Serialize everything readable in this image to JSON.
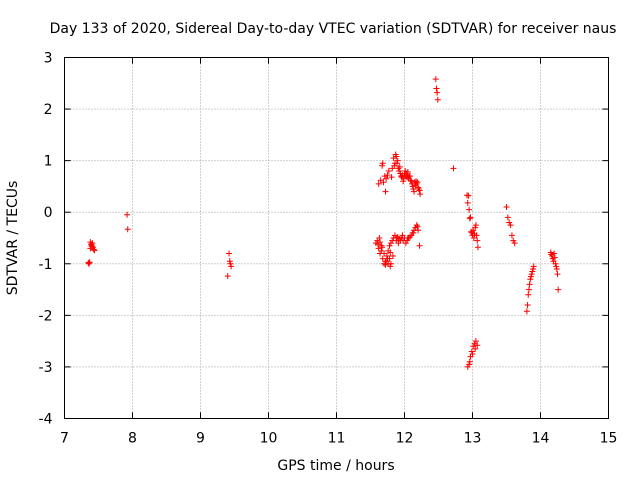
{
  "chart_data": {
    "type": "scatter",
    "title": "Day 133 of 2020, Sidereal Day-to-day VTEC variation (SDTVAR) for receiver naus",
    "xlabel": "GPS time / hours",
    "ylabel": "SDTVAR / TECUs",
    "xlim": [
      7,
      15
    ],
    "ylim": [
      -4,
      3
    ],
    "xticks": [
      7,
      8,
      9,
      10,
      11,
      12,
      13,
      14,
      15
    ],
    "yticks": [
      -4,
      -3,
      -2,
      -1,
      0,
      1,
      2,
      3
    ],
    "grid": true,
    "marker": "+",
    "color": "#ff0000",
    "series": [
      {
        "name": "SDTVAR",
        "x": [
          7.35,
          7.36,
          7.37,
          7.38,
          7.39,
          7.4,
          7.41,
          7.42,
          7.43,
          7.44,
          7.38,
          7.4,
          7.92,
          7.93,
          9.4,
          9.42,
          9.43,
          9.44,
          9.45,
          11.58,
          11.6,
          11.61,
          11.62,
          11.63,
          11.64,
          11.65,
          11.66,
          11.67,
          11.68,
          11.69,
          11.7,
          11.71,
          11.72,
          11.73,
          11.74,
          11.75,
          11.76,
          11.77,
          11.78,
          11.79,
          11.8,
          11.81,
          11.82,
          11.83,
          11.84,
          11.85,
          11.86,
          11.87,
          11.88,
          11.89,
          11.9,
          11.91,
          11.92,
          11.93,
          11.94,
          11.95,
          11.96,
          11.97,
          11.98,
          11.99,
          12.0,
          12.01,
          12.02,
          12.03,
          12.04,
          12.05,
          12.06,
          12.07,
          12.08,
          12.09,
          12.1,
          12.11,
          12.12,
          12.13,
          12.14,
          12.15,
          12.16,
          12.17,
          12.18,
          12.19,
          12.2,
          12.21,
          12.22,
          12.23,
          11.62,
          11.64,
          11.66,
          11.68,
          11.7,
          11.72,
          11.74,
          11.76,
          11.78,
          11.8,
          11.82,
          11.84,
          11.86,
          11.88,
          11.9,
          11.92,
          11.94,
          11.96,
          11.98,
          12.0,
          12.02,
          12.04,
          12.06,
          12.08,
          12.1,
          12.12,
          12.14,
          12.16,
          12.18,
          12.2,
          12.22,
          11.67,
          11.72,
          11.75,
          11.79,
          11.88,
          11.91,
          11.97,
          12.05,
          12.13,
          12.19,
          12.46,
          12.47,
          12.48,
          12.49,
          12.72,
          12.92,
          12.93,
          12.94,
          12.95,
          12.96,
          12.97,
          12.98,
          12.99,
          13.0,
          13.01,
          13.02,
          13.03,
          13.04,
          13.05,
          13.06,
          13.07,
          13.08,
          12.93,
          12.95,
          12.97,
          12.99,
          13.01,
          13.03,
          13.05,
          13.07,
          12.96,
          13.0,
          13.04,
          13.5,
          13.52,
          13.54,
          13.56,
          13.58,
          13.6,
          13.62,
          13.8,
          13.81,
          13.82,
          13.83,
          13.84,
          13.85,
          13.86,
          13.87,
          13.88,
          13.89,
          13.9,
          14.15,
          14.16,
          14.17,
          14.18,
          14.19,
          14.2,
          14.21,
          14.22,
          14.23,
          14.24,
          14.25,
          14.26
        ],
        "y": [
          -0.98,
          -1.0,
          -0.97,
          -0.7,
          -0.62,
          -0.66,
          -0.6,
          -0.68,
          -0.72,
          -0.74,
          -0.58,
          -0.64,
          -0.05,
          -0.33,
          -1.24,
          -0.8,
          -0.95,
          -1.0,
          -1.05,
          -0.6,
          -0.55,
          -0.62,
          0.55,
          -0.5,
          -0.58,
          0.62,
          -0.65,
          0.9,
          0.95,
          0.58,
          -0.8,
          0.7,
          0.4,
          0.65,
          -0.95,
          0.72,
          -1.0,
          0.8,
          -0.9,
          -1.05,
          -1.0,
          0.68,
          0.85,
          -0.85,
          1.05,
          0.9,
          0.95,
          1.12,
          1.08,
          0.95,
          1.0,
          0.85,
          0.8,
          0.88,
          0.75,
          0.7,
          0.68,
          0.72,
          0.6,
          0.65,
          0.75,
          0.8,
          0.7,
          0.72,
          0.68,
          0.78,
          0.66,
          0.7,
          0.7,
          0.62,
          0.6,
          0.55,
          0.5,
          0.45,
          0.4,
          0.58,
          0.52,
          0.6,
          0.55,
          0.58,
          0.48,
          0.45,
          0.42,
          0.35,
          -0.7,
          -0.8,
          -0.75,
          -0.9,
          -1.0,
          -0.95,
          -0.85,
          -0.75,
          -0.65,
          -0.6,
          -0.55,
          -0.5,
          -0.45,
          -0.5,
          -0.48,
          -0.52,
          -0.55,
          -0.5,
          -0.55,
          -0.5,
          -0.6,
          -0.55,
          -0.5,
          -0.48,
          -0.45,
          -0.4,
          -0.35,
          -0.3,
          -0.25,
          -0.35,
          -0.65,
          -0.68,
          -1.02,
          -0.9,
          -0.78,
          -0.55,
          -0.6,
          -0.45,
          -0.5,
          -0.4,
          -0.28,
          2.58,
          2.4,
          2.32,
          2.18,
          0.85,
          0.33,
          0.18,
          0.32,
          0.05,
          -0.12,
          -0.1,
          -0.38,
          -0.4,
          -0.45,
          -0.35,
          -0.5,
          -0.42,
          -0.3,
          -0.25,
          -0.45,
          -0.55,
          -0.68,
          -3.0,
          -2.95,
          -2.8,
          -2.7,
          -2.6,
          -2.55,
          -2.5,
          -2.58,
          -2.9,
          -2.75,
          -2.65,
          0.1,
          -0.1,
          -0.2,
          -0.25,
          -0.45,
          -0.55,
          -0.6,
          -1.92,
          -1.8,
          -1.6,
          -1.5,
          -1.4,
          -1.3,
          -1.25,
          -1.2,
          -1.15,
          -1.1,
          -1.05,
          -0.78,
          -0.82,
          -0.85,
          -0.9,
          -0.95,
          -0.8,
          -0.88,
          -1.0,
          -1.05,
          -1.1,
          -1.2,
          -1.5
        ]
      }
    ]
  }
}
